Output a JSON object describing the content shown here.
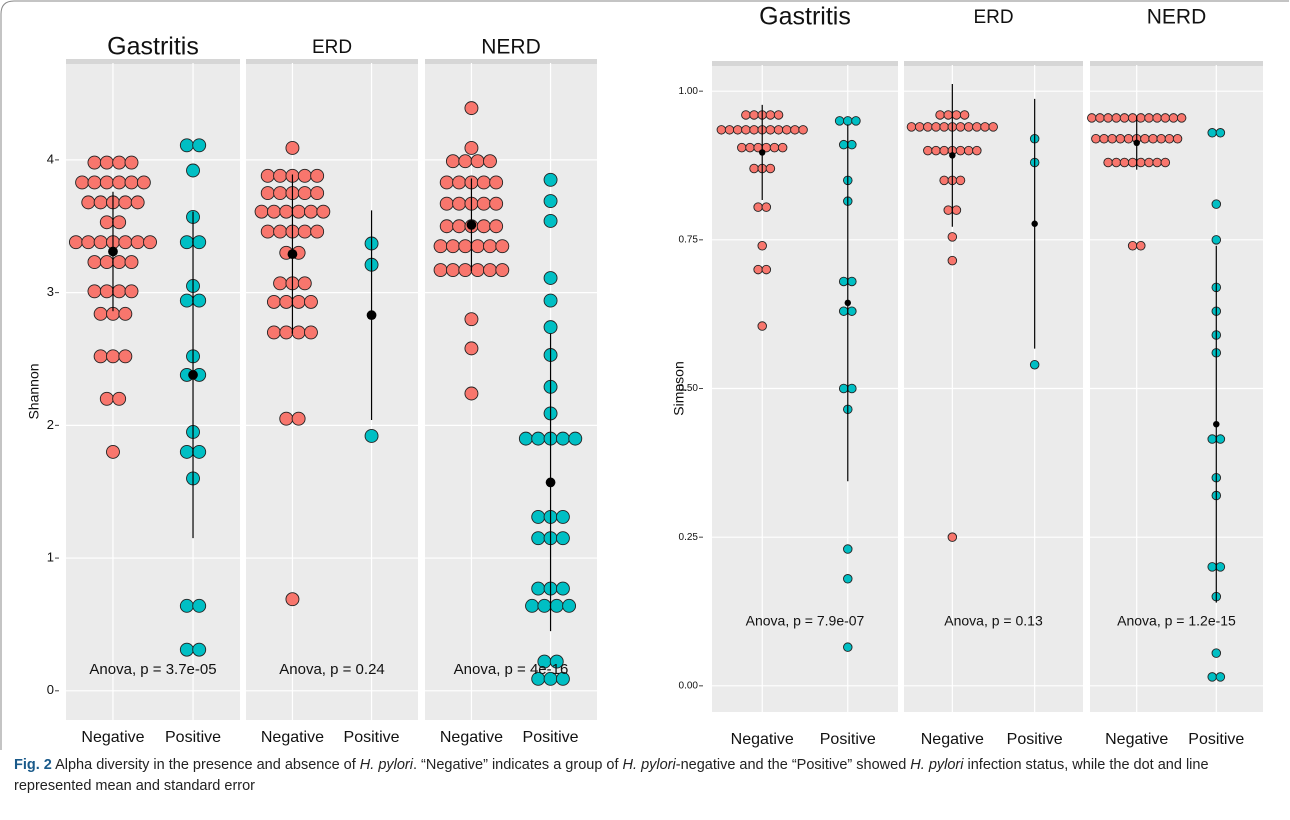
{
  "chart_data": [
    {
      "type": "dotplot",
      "ylabel": "Shannon",
      "ylim": [
        -0.22,
        4.73
      ],
      "yticks": [
        0,
        1,
        2,
        3,
        4
      ],
      "grid": true,
      "facets": [
        {
          "title": "Gastritis",
          "annotation": "Anova, p = 3.7e-05",
          "series": [
            {
              "name": "Negative",
              "color": "#f8766d",
              "mean": 3.31,
              "error": 0.45,
              "values": [
                3.98,
                3.98,
                3.98,
                3.98,
                3.83,
                3.83,
                3.83,
                3.83,
                3.83,
                3.83,
                3.68,
                3.68,
                3.68,
                3.68,
                3.68,
                3.53,
                3.53,
                3.38,
                3.38,
                3.38,
                3.38,
                3.38,
                3.38,
                3.38,
                3.23,
                3.23,
                3.23,
                3.23,
                3.01,
                3.01,
                3.01,
                3.01,
                2.84,
                2.84,
                2.84,
                2.52,
                2.52,
                2.52,
                2.2,
                2.2,
                1.8
              ]
            },
            {
              "name": "Positive",
              "color": "#00bfc4",
              "mean": 2.38,
              "error": 1.23,
              "values": [
                4.11,
                4.11,
                3.92,
                3.57,
                3.38,
                3.38,
                3.05,
                2.94,
                2.94,
                2.52,
                2.38,
                2.38,
                1.95,
                1.8,
                1.8,
                1.6,
                0.64,
                0.64,
                0.31,
                0.31
              ]
            }
          ]
        },
        {
          "title": "ERD",
          "annotation": "Anova, p = 0.24",
          "series": [
            {
              "name": "Negative",
              "color": "#f8766d",
              "mean": 3.29,
              "error": 0.6,
              "values": [
                4.09,
                3.88,
                3.88,
                3.88,
                3.88,
                3.88,
                3.75,
                3.75,
                3.75,
                3.75,
                3.75,
                3.61,
                3.61,
                3.61,
                3.61,
                3.61,
                3.61,
                3.46,
                3.46,
                3.46,
                3.46,
                3.46,
                3.3,
                3.3,
                3.07,
                3.07,
                3.07,
                2.93,
                2.93,
                2.93,
                2.93,
                2.7,
                2.7,
                2.7,
                2.7,
                2.05,
                2.05,
                0.69
              ]
            },
            {
              "name": "Positive",
              "color": "#00bfc4",
              "mean": 2.83,
              "error": 0.79,
              "values": [
                3.37,
                3.21,
                1.92
              ]
            }
          ]
        },
        {
          "title": "NERD",
          "annotation": "Anova, p = 4e-16",
          "series": [
            {
              "name": "Negative",
              "color": "#f8766d",
              "mean": 3.51,
              "error": 0.35,
              "values": [
                4.39,
                4.09,
                3.99,
                3.99,
                3.99,
                3.99,
                3.83,
                3.83,
                3.83,
                3.83,
                3.83,
                3.67,
                3.67,
                3.67,
                3.67,
                3.67,
                3.5,
                3.5,
                3.5,
                3.5,
                3.5,
                3.35,
                3.35,
                3.35,
                3.35,
                3.35,
                3.35,
                3.17,
                3.17,
                3.17,
                3.17,
                3.17,
                3.17,
                2.8,
                2.58,
                2.24
              ]
            },
            {
              "name": "Positive",
              "color": "#00bfc4",
              "mean": 1.57,
              "error": 1.12,
              "values": [
                3.85,
                3.69,
                3.54,
                3.11,
                2.94,
                2.74,
                2.53,
                2.29,
                2.09,
                1.9,
                1.9,
                1.9,
                1.9,
                1.9,
                1.31,
                1.31,
                1.31,
                1.15,
                1.15,
                1.15,
                0.77,
                0.77,
                0.77,
                0.64,
                0.64,
                0.64,
                0.64,
                0.22,
                0.22,
                0.09,
                0.09,
                0.09
              ]
            }
          ]
        }
      ]
    },
    {
      "type": "dotplot",
      "ylabel": "Simpson",
      "ylim": [
        -0.044,
        1.044
      ],
      "yticks": [
        {
          "value": 0,
          "label": "0.00"
        },
        {
          "value": 0.25,
          "label": "0.25"
        },
        {
          "value": 0.5,
          "label": "0.50"
        },
        {
          "value": 0.75,
          "label": "0.75"
        },
        {
          "value": 1,
          "label": "1.00"
        }
      ],
      "grid": true,
      "facets": [
        {
          "title": "Gastritis",
          "annotation": "Anova, p = 7.9e-07",
          "series": [
            {
              "name": "Negative",
              "color": "#f8766d",
              "mean": 0.897,
              "error": 0.08,
              "values": [
                0.96,
                0.96,
                0.96,
                0.96,
                0.96,
                0.935,
                0.935,
                0.935,
                0.935,
                0.935,
                0.935,
                0.935,
                0.935,
                0.935,
                0.935,
                0.935,
                0.905,
                0.905,
                0.905,
                0.905,
                0.905,
                0.905,
                0.87,
                0.87,
                0.87,
                0.805,
                0.805,
                0.74,
                0.7,
                0.7,
                0.605
              ]
            },
            {
              "name": "Positive",
              "color": "#00bfc4",
              "mean": 0.644,
              "error": 0.3,
              "values": [
                0.95,
                0.95,
                0.95,
                0.91,
                0.91,
                0.85,
                0.815,
                0.68,
                0.68,
                0.63,
                0.63,
                0.5,
                0.5,
                0.465,
                0.23,
                0.18,
                0.065
              ]
            }
          ]
        },
        {
          "title": "ERD",
          "annotation": "Anova, p = 0.13",
          "series": [
            {
              "name": "Negative",
              "color": "#f8766d",
              "mean": 0.892,
              "error": 0.12,
              "values": [
                0.96,
                0.96,
                0.96,
                0.96,
                0.94,
                0.94,
                0.94,
                0.94,
                0.94,
                0.94,
                0.94,
                0.94,
                0.94,
                0.94,
                0.94,
                0.9,
                0.9,
                0.9,
                0.9,
                0.9,
                0.9,
                0.9,
                0.85,
                0.85,
                0.85,
                0.8,
                0.8,
                0.755,
                0.715,
                0.25
              ]
            },
            {
              "name": "Positive",
              "color": "#00bfc4",
              "mean": 0.777,
              "error": 0.21,
              "values": [
                0.92,
                0.88,
                0.54
              ]
            }
          ]
        },
        {
          "title": "NERD",
          "annotation": "Anova, p = 1.2e-15",
          "series": [
            {
              "name": "Negative",
              "color": "#f8766d",
              "mean": 0.913,
              "error": 0.045,
              "values": [
                0.955,
                0.955,
                0.955,
                0.955,
                0.955,
                0.955,
                0.955,
                0.955,
                0.955,
                0.955,
                0.955,
                0.955,
                0.92,
                0.92,
                0.92,
                0.92,
                0.92,
                0.92,
                0.92,
                0.92,
                0.92,
                0.92,
                0.92,
                0.88,
                0.88,
                0.88,
                0.88,
                0.88,
                0.88,
                0.88,
                0.88,
                0.74,
                0.74
              ]
            },
            {
              "name": "Positive",
              "color": "#00bfc4",
              "mean": 0.44,
              "error": 0.3,
              "values": [
                0.93,
                0.93,
                0.81,
                0.75,
                0.67,
                0.63,
                0.59,
                0.56,
                0.415,
                0.415,
                0.35,
                0.32,
                0.2,
                0.2,
                0.15,
                0.055,
                0.015,
                0.015
              ]
            }
          ]
        }
      ]
    }
  ],
  "caption": [
    "Fig. 2",
    " Alpha diversity in the presence and absence of ",
    "H. pylori",
    ". “Negative” indicates a group of ",
    "H. pylori",
    "-negative and the “Positive” showed ",
    "H. pylori",
    " infection status, while the dot and line represented mean and standard error"
  ]
}
